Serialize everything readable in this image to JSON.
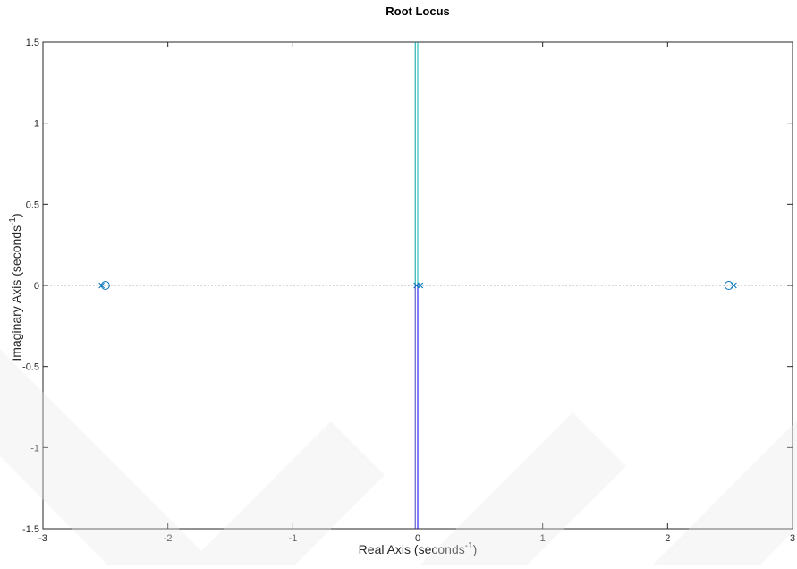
{
  "chart_data": {
    "type": "scatter",
    "title": "Root Locus",
    "xlabel": {
      "base": "Real Axis (seconds",
      "sup": "-1",
      "close": ")"
    },
    "ylabel": {
      "base": "Imaginary Axis (seconds",
      "sup": "-1",
      "close": ")"
    },
    "xlim": [
      -3,
      3
    ],
    "ylim": [
      -1.5,
      1.5
    ],
    "xticks": [
      -3,
      -2,
      -1,
      0,
      1,
      2,
      3
    ],
    "xtick_labels": [
      "-3",
      "-2",
      "-1",
      "0",
      "1",
      "2",
      "3"
    ],
    "yticks": [
      -1.5,
      -1,
      -0.5,
      0,
      0.5,
      1,
      1.5
    ],
    "ytick_labels": [
      "-1.5",
      "-1",
      "-0.5",
      "0",
      "0.5",
      "1",
      "1.5"
    ],
    "grid": false,
    "branches": [
      {
        "color": "#00b0b0",
        "points": [
          [
            0.0,
            0.0
          ],
          [
            0.0,
            1.5
          ]
        ]
      },
      {
        "color": "#0000ff",
        "points": [
          [
            0.0,
            0.0
          ],
          [
            0.0,
            -1.5
          ]
        ]
      },
      {
        "color": "#00a0a0",
        "points": [
          [
            -0.02,
            0.0
          ],
          [
            -0.02,
            1.5
          ]
        ]
      },
      {
        "color": "#4040c0",
        "points": [
          [
            -0.02,
            0.0
          ],
          [
            -0.02,
            -1.5
          ]
        ]
      }
    ],
    "poles": [
      {
        "x": -2.53,
        "y": 0
      },
      {
        "x": -0.01,
        "y": 0
      },
      {
        "x": 0.02,
        "y": 0
      },
      {
        "x": 2.53,
        "y": 0
      }
    ],
    "zeros": [
      {
        "x": -2.5,
        "y": 0
      },
      {
        "x": 2.49,
        "y": 0
      }
    ],
    "colors": {
      "marker": "#0072bd",
      "zero_line": "#b0b0b0",
      "axes": "#262626"
    }
  }
}
